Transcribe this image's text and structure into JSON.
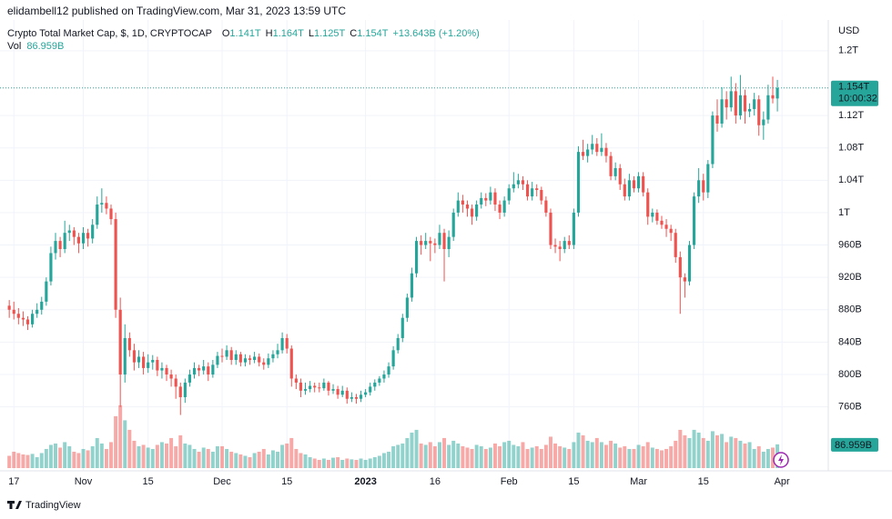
{
  "header": "elidambell12 published on TradingView.com, Mar 31, 2023 13:59 UTC",
  "footer": "TradingView",
  "chart_data": {
    "type": "candlestick",
    "title": "Crypto Total Market Cap, $, 1D, CRYPTOCAP",
    "ohlc_legend": [
      {
        "key": "O",
        "value": "1.141T"
      },
      {
        "key": "H",
        "value": "1.164T"
      },
      {
        "key": "L",
        "value": "1.125T"
      },
      {
        "key": "C",
        "value": "1.154T"
      }
    ],
    "change": "+13.643B (+1.20%)",
    "currency": "USD",
    "up_color": "#26a69a",
    "down_color": "#ef5350",
    "last_price": {
      "value": 1154,
      "label": "1.154T"
    },
    "countdown": "10:00:32",
    "ylim": [
      681,
      1238
    ],
    "yticks": [
      {
        "value": 760,
        "label": "760B"
      },
      {
        "value": 800,
        "label": "800B"
      },
      {
        "value": 840,
        "label": "840B"
      },
      {
        "value": 880,
        "label": "880B"
      },
      {
        "value": 920,
        "label": "920B"
      },
      {
        "value": 960,
        "label": "960B"
      },
      {
        "value": 1000,
        "label": "1T"
      },
      {
        "value": 1040,
        "label": "1.04T"
      },
      {
        "value": 1080,
        "label": "1.08T"
      },
      {
        "value": 1120,
        "label": "1.12T"
      },
      {
        "value": 1200,
        "label": "1.2T"
      }
    ],
    "xlim": [
      -2,
      177
    ],
    "xticks": [
      {
        "value": 1,
        "label": "17"
      },
      {
        "value": 16,
        "label": "Nov"
      },
      {
        "value": 30,
        "label": "15"
      },
      {
        "value": 46,
        "label": "Dec"
      },
      {
        "value": 60,
        "label": "15"
      },
      {
        "value": 77,
        "label": "2023"
      },
      {
        "value": 92,
        "label": "16"
      },
      {
        "value": 108,
        "label": "Feb"
      },
      {
        "value": 122,
        "label": "15"
      },
      {
        "value": 136,
        "label": "Mar"
      },
      {
        "value": 150,
        "label": "15"
      },
      {
        "value": 167,
        "label": "Apr"
      }
    ],
    "grid": true,
    "ohlc": [
      [
        885,
        892,
        870,
        880
      ],
      [
        880,
        890,
        868,
        875
      ],
      [
        875,
        882,
        862,
        870
      ],
      [
        870,
        878,
        860,
        868
      ],
      [
        868,
        872,
        855,
        862
      ],
      [
        862,
        880,
        858,
        875
      ],
      [
        875,
        888,
        870,
        880
      ],
      [
        880,
        896,
        874,
        890
      ],
      [
        890,
        920,
        885,
        915
      ],
      [
        915,
        958,
        910,
        950
      ],
      [
        950,
        975,
        942,
        965
      ],
      [
        965,
        970,
        945,
        955
      ],
      [
        955,
        990,
        950,
        975
      ],
      [
        975,
        985,
        965,
        978
      ],
      [
        978,
        982,
        960,
        970
      ],
      [
        970,
        975,
        950,
        962
      ],
      [
        962,
        982,
        955,
        975
      ],
      [
        975,
        980,
        958,
        968
      ],
      [
        968,
        992,
        962,
        985
      ],
      [
        985,
        1020,
        980,
        1010
      ],
      [
        1010,
        1030,
        1000,
        1012
      ],
      [
        1012,
        1020,
        998,
        1005
      ],
      [
        1005,
        1010,
        985,
        992
      ],
      [
        992,
        1000,
        870,
        880
      ],
      [
        880,
        895,
        760,
        800
      ],
      [
        800,
        862,
        790,
        845
      ],
      [
        845,
        852,
        822,
        830
      ],
      [
        830,
        838,
        805,
        815
      ],
      [
        815,
        830,
        808,
        822
      ],
      [
        822,
        828,
        800,
        808
      ],
      [
        808,
        825,
        802,
        815
      ],
      [
        815,
        824,
        806,
        818
      ],
      [
        818,
        822,
        798,
        805
      ],
      [
        805,
        815,
        795,
        808
      ],
      [
        808,
        812,
        792,
        800
      ],
      [
        800,
        806,
        785,
        795
      ],
      [
        795,
        800,
        770,
        785
      ],
      [
        785,
        790,
        750,
        772
      ],
      [
        772,
        795,
        765,
        790
      ],
      [
        790,
        806,
        785,
        800
      ],
      [
        800,
        815,
        795,
        808
      ],
      [
        808,
        812,
        798,
        805
      ],
      [
        805,
        818,
        800,
        810
      ],
      [
        810,
        815,
        792,
        800
      ],
      [
        800,
        818,
        796,
        812
      ],
      [
        812,
        828,
        808,
        823
      ],
      [
        823,
        832,
        815,
        822
      ],
      [
        822,
        836,
        818,
        830
      ],
      [
        830,
        834,
        812,
        818
      ],
      [
        818,
        830,
        812,
        825
      ],
      [
        825,
        828,
        810,
        815
      ],
      [
        815,
        825,
        810,
        820
      ],
      [
        820,
        824,
        812,
        818
      ],
      [
        818,
        828,
        814,
        822
      ],
      [
        822,
        826,
        810,
        815
      ],
      [
        815,
        820,
        806,
        812
      ],
      [
        812,
        826,
        808,
        820
      ],
      [
        820,
        830,
        815,
        825
      ],
      [
        825,
        838,
        820,
        830
      ],
      [
        830,
        852,
        826,
        845
      ],
      [
        845,
        850,
        826,
        832
      ],
      [
        832,
        836,
        785,
        795
      ],
      [
        795,
        800,
        782,
        790
      ],
      [
        790,
        795,
        772,
        780
      ],
      [
        780,
        790,
        775,
        782
      ],
      [
        782,
        792,
        778,
        786
      ],
      [
        786,
        790,
        778,
        784
      ],
      [
        784,
        790,
        778,
        783
      ],
      [
        783,
        795,
        780,
        790
      ],
      [
        790,
        792,
        774,
        780
      ],
      [
        780,
        788,
        776,
        782
      ],
      [
        782,
        786,
        770,
        775
      ],
      [
        775,
        786,
        772,
        780
      ],
      [
        780,
        784,
        764,
        770
      ],
      [
        770,
        778,
        766,
        772
      ],
      [
        772,
        776,
        764,
        770
      ],
      [
        770,
        780,
        766,
        775
      ],
      [
        775,
        782,
        772,
        778
      ],
      [
        778,
        790,
        774,
        785
      ],
      [
        785,
        794,
        780,
        790
      ],
      [
        790,
        798,
        786,
        795
      ],
      [
        795,
        805,
        790,
        800
      ],
      [
        800,
        815,
        796,
        810
      ],
      [
        810,
        835,
        806,
        830
      ],
      [
        830,
        850,
        826,
        845
      ],
      [
        845,
        875,
        840,
        870
      ],
      [
        870,
        900,
        865,
        895
      ],
      [
        895,
        932,
        890,
        925
      ],
      [
        925,
        970,
        920,
        965
      ],
      [
        965,
        972,
        948,
        960
      ],
      [
        960,
        975,
        955,
        965
      ],
      [
        965,
        970,
        940,
        962
      ],
      [
        962,
        968,
        950,
        960
      ],
      [
        960,
        985,
        955,
        975
      ],
      [
        975,
        980,
        915,
        955
      ],
      [
        955,
        978,
        945,
        970
      ],
      [
        970,
        1005,
        965,
        1000
      ],
      [
        1000,
        1025,
        995,
        1015
      ],
      [
        1015,
        1022,
        1000,
        1010
      ],
      [
        1010,
        1015,
        995,
        1005
      ],
      [
        1005,
        1010,
        985,
        995
      ],
      [
        995,
        1015,
        990,
        1010
      ],
      [
        1010,
        1025,
        1005,
        1018
      ],
      [
        1018,
        1024,
        1008,
        1015
      ],
      [
        1015,
        1032,
        1010,
        1025
      ],
      [
        1025,
        1030,
        1002,
        1010
      ],
      [
        1010,
        1015,
        992,
        1000
      ],
      [
        1000,
        1020,
        995,
        1015
      ],
      [
        1015,
        1035,
        1010,
        1030
      ],
      [
        1030,
        1050,
        1025,
        1035
      ],
      [
        1035,
        1048,
        1030,
        1040
      ],
      [
        1040,
        1045,
        1028,
        1035
      ],
      [
        1035,
        1040,
        1015,
        1020
      ],
      [
        1020,
        1038,
        1015,
        1030
      ],
      [
        1030,
        1035,
        1020,
        1028
      ],
      [
        1028,
        1032,
        1010,
        1015
      ],
      [
        1015,
        1020,
        995,
        1000
      ],
      [
        1000,
        1005,
        955,
        960
      ],
      [
        960,
        968,
        950,
        958
      ],
      [
        958,
        965,
        940,
        955
      ],
      [
        955,
        970,
        950,
        965
      ],
      [
        965,
        972,
        955,
        960
      ],
      [
        960,
        1005,
        955,
        1000
      ],
      [
        1000,
        1082,
        995,
        1075
      ],
      [
        1075,
        1090,
        1065,
        1070
      ],
      [
        1070,
        1085,
        1062,
        1078
      ],
      [
        1078,
        1096,
        1072,
        1085
      ],
      [
        1085,
        1092,
        1070,
        1075
      ],
      [
        1075,
        1098,
        1070,
        1080
      ],
      [
        1080,
        1086,
        1062,
        1070
      ],
      [
        1070,
        1075,
        1040,
        1045
      ],
      [
        1045,
        1062,
        1040,
        1055
      ],
      [
        1055,
        1060,
        1028,
        1035
      ],
      [
        1035,
        1042,
        1015,
        1020
      ],
      [
        1020,
        1048,
        1015,
        1040
      ],
      [
        1040,
        1045,
        1025,
        1030
      ],
      [
        1030,
        1050,
        1025,
        1045
      ],
      [
        1045,
        1050,
        1020,
        1025
      ],
      [
        1025,
        1030,
        985,
        995
      ],
      [
        995,
        1005,
        988,
        1000
      ],
      [
        1000,
        1004,
        985,
        990
      ],
      [
        990,
        996,
        980,
        985
      ],
      [
        985,
        992,
        970,
        980
      ],
      [
        980,
        985,
        965,
        975
      ],
      [
        975,
        980,
        938,
        945
      ],
      [
        945,
        952,
        875,
        920
      ],
      [
        920,
        925,
        895,
        915
      ],
      [
        915,
        965,
        910,
        960
      ],
      [
        960,
        1025,
        955,
        1020
      ],
      [
        1020,
        1055,
        1012,
        1040
      ],
      [
        1040,
        1048,
        1015,
        1025
      ],
      [
        1025,
        1065,
        1018,
        1060
      ],
      [
        1060,
        1125,
        1055,
        1120
      ],
      [
        1120,
        1140,
        1100,
        1110
      ],
      [
        1110,
        1155,
        1105,
        1140
      ],
      [
        1140,
        1150,
        1115,
        1130
      ],
      [
        1130,
        1168,
        1125,
        1150
      ],
      [
        1150,
        1160,
        1110,
        1120
      ],
      [
        1120,
        1170,
        1115,
        1145
      ],
      [
        1145,
        1152,
        1110,
        1125
      ],
      [
        1125,
        1135,
        1118,
        1128
      ],
      [
        1128,
        1148,
        1120,
        1140
      ],
      [
        1140,
        1145,
        1095,
        1108
      ],
      [
        1108,
        1125,
        1090,
        1115
      ],
      [
        1115,
        1158,
        1110,
        1145
      ],
      [
        1145,
        1168,
        1135,
        1141
      ],
      [
        1141,
        1164,
        1125,
        1154
      ]
    ],
    "y2lim": [
      0,
      1650
    ],
    "volume": {
      "name": "Vol",
      "axis": "y2",
      "values": [
        45,
        60,
        55,
        50,
        48,
        52,
        40,
        55,
        70,
        85,
        90,
        75,
        95,
        80,
        60,
        55,
        70,
        65,
        80,
        110,
        90,
        70,
        95,
        190,
        230,
        175,
        140,
        100,
        80,
        85,
        75,
        70,
        85,
        95,
        90,
        110,
        80,
        120,
        90,
        85,
        70,
        60,
        75,
        70,
        60,
        80,
        80,
        70,
        60,
        55,
        50,
        45,
        40,
        55,
        60,
        70,
        50,
        65,
        60,
        85,
        90,
        110,
        70,
        55,
        50,
        40,
        35,
        30,
        35,
        30,
        38,
        40,
        30,
        35,
        32,
        30,
        35,
        30,
        35,
        40,
        45,
        55,
        60,
        80,
        85,
        90,
        110,
        130,
        140,
        90,
        85,
        95,
        80,
        95,
        110,
        85,
        100,
        90,
        80,
        75,
        70,
        85,
        80,
        70,
        75,
        90,
        80,
        95,
        100,
        85,
        80,
        95,
        70,
        75,
        80,
        70,
        85,
        115,
        90,
        80,
        75,
        70,
        95,
        130,
        120,
        100,
        95,
        110,
        95,
        85,
        100,
        90,
        75,
        80,
        70,
        70,
        85,
        80,
        95,
        75,
        70,
        65,
        70,
        80,
        100,
        140,
        120,
        110,
        140,
        130,
        110,
        100,
        135,
        120,
        125,
        95,
        115,
        110,
        100,
        90,
        95,
        70,
        80,
        60,
        70,
        75,
        86.959
      ],
      "last_label": "86.959B"
    }
  }
}
